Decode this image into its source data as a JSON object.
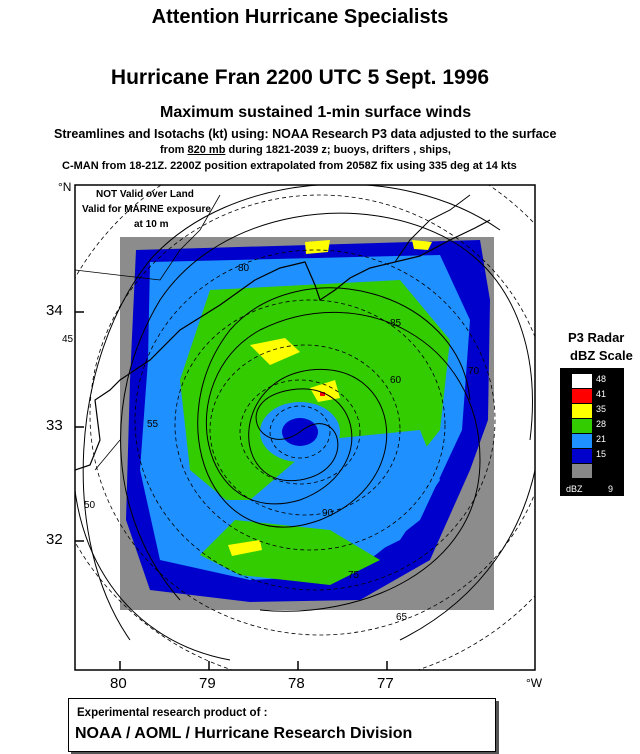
{
  "header": {
    "attention": "Attention  Hurricane Specialists",
    "title": "Hurricane Fran 2200 UTC 5 Sept. 1996",
    "subtitle": "Maximum sustained 1-min surface winds",
    "desc_line1": "Streamlines and Isotachs (kt) using: NOAA Research  P3 data adjusted to the surface",
    "desc_line2_pre": "from ",
    "desc_line2_u": "820 mb",
    "desc_line2_post": " during 1821-2039 z; buoys, drifters , ships,",
    "desc_line3": "C-MAN from 18-21Z.   2200Z  position extrapolated from 2058Z  fix using 335 deg at 14 kts"
  },
  "map": {
    "warning_line1": "NOT Valid over Land",
    "warning_line2": "Valid for MARINE exposure",
    "warning_line3": "at 10 m",
    "lat_unit": "°N",
    "lon_unit": "°W",
    "lat_ticks": [
      "34",
      "33",
      "32"
    ],
    "lon_ticks": [
      "80",
      "79",
      "78",
      "77"
    ],
    "isotach_labels": [
      "45",
      "50",
      "55",
      "60",
      "65",
      "70",
      "75",
      "80",
      "85",
      "90"
    ],
    "radar_background": "#8c8c8c"
  },
  "radar_scale": {
    "title_line1": "P3 Radar",
    "title_line2": "dBZ Scale",
    "unit": "dBZ",
    "levels": [
      {
        "value": "48",
        "color": "#ffffff"
      },
      {
        "value": "41",
        "color": "#ff0000"
      },
      {
        "value": "35",
        "color": "#ffff00"
      },
      {
        "value": "28",
        "color": "#33cc00"
      },
      {
        "value": "21",
        "color": "#1e90ff"
      },
      {
        "value": "15",
        "color": "#0000cc"
      },
      {
        "value": "9",
        "color": "#888888"
      }
    ]
  },
  "credit": {
    "line1": "Experimental research product of :",
    "line2": "NOAA / AOML / Hurricane Research Division"
  }
}
